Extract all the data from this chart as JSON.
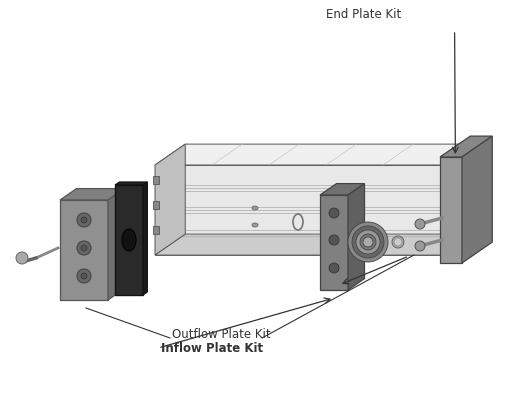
{
  "background_color": "#ffffff",
  "labels": {
    "end_plate_kit": "End Plate Kit",
    "outflow_plate_kit": "Outflow Plate Kit",
    "inflow_plate_kit": "Inflow Plate Kit"
  },
  "label_fontsize": 8.5,
  "label_color": "#333333",
  "fig_width": 5.06,
  "fig_height": 4.01,
  "dpi": 100,
  "colors": {
    "rail_top": "#f0f0f0",
    "rail_top2": "#e8e8e8",
    "rail_top3": "#e0e0e0",
    "rail_side": "#d8d8d8",
    "rail_bottom": "#c8c8c8",
    "rail_end_left": "#c0c0c0",
    "slot_line": "#aaaaaa",
    "end_plate_top": "#888888",
    "end_plate_front": "#999999",
    "end_plate_side": "#777777",
    "black_plate": "#2a2a2a",
    "black_plate_side": "#1a1a1a",
    "gray_block_top": "#808080",
    "gray_block_front": "#909090",
    "gray_block_side": "#707070",
    "inflow_block_top": "#707070",
    "inflow_block_front": "#808080",
    "fitting_dark": "#555555",
    "fitting_mid": "#888888",
    "fitting_light": "#aaaaaa",
    "edge": "#444444",
    "edge_dark": "#222222"
  }
}
